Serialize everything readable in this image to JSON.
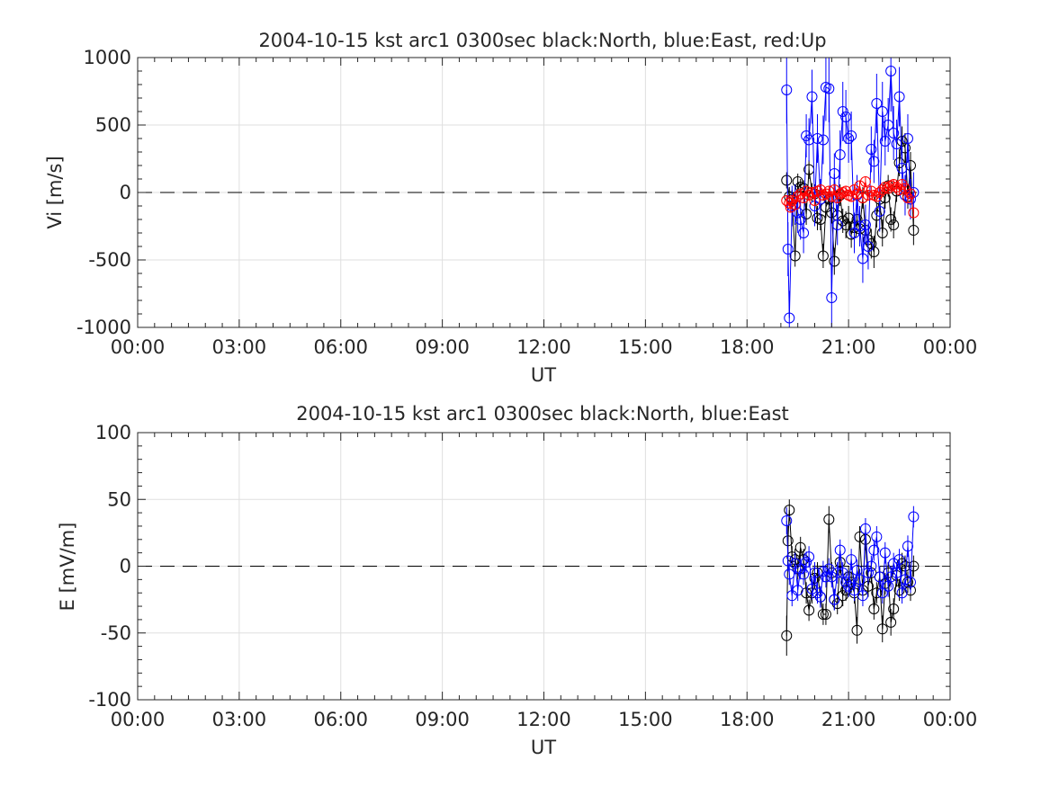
{
  "chart_data": [
    {
      "type": "scatter",
      "title": "2004-10-15 kst arc1 0300sec black:North, blue:East, red:Up",
      "xlabel": "UT",
      "ylabel": "Vi [m/s]",
      "xlim": [
        0,
        24
      ],
      "ylim": [
        -1000,
        1000
      ],
      "xtick_values": [
        0,
        3,
        6,
        9,
        12,
        15,
        18,
        21,
        24
      ],
      "xtick_labels": [
        "00:00",
        "03:00",
        "06:00",
        "09:00",
        "12:00",
        "15:00",
        "18:00",
        "21:00",
        "00:00"
      ],
      "ytick_values": [
        -1000,
        -500,
        0,
        500,
        1000
      ],
      "ytick_labels": [
        "-1000",
        "-500",
        "0",
        "500",
        "1000"
      ],
      "grid": true,
      "zero_line": "dashed",
      "marker": "open-circle",
      "error_bars": true,
      "x_units": "hours UT",
      "colors": {
        "North": "#000000",
        "East": "#0000ff",
        "Up": "#ff0000"
      },
      "series": [
        {
          "name": "North",
          "color": "#000000",
          "x": [
            19.17,
            19.25,
            19.33,
            19.42,
            19.5,
            19.58,
            19.67,
            19.75,
            19.83,
            19.92,
            20.0,
            20.08,
            20.17,
            20.25,
            20.33,
            20.42,
            20.5,
            20.58,
            20.67,
            20.75,
            20.83,
            20.92,
            21.0,
            21.08,
            21.17,
            21.25,
            21.33,
            21.42,
            21.5,
            21.58,
            21.67,
            21.75,
            21.83,
            21.92,
            22.0,
            22.08,
            22.17,
            22.25,
            22.33,
            22.42,
            22.5,
            22.58,
            22.67,
            22.75,
            22.83,
            22.92
          ],
          "y": [
            90,
            -30,
            -50,
            -470,
            80,
            40,
            30,
            -160,
            170,
            0,
            -10,
            -190,
            -200,
            -470,
            -110,
            -50,
            -150,
            -510,
            -170,
            -20,
            -210,
            -240,
            -190,
            -310,
            -260,
            -200,
            -270,
            -40,
            -280,
            -350,
            -380,
            -440,
            -170,
            -50,
            -300,
            -40,
            50,
            -200,
            -240,
            10,
            220,
            380,
            330,
            -30,
            200,
            -280
          ],
          "err": [
            60,
            70,
            70,
            80,
            60,
            60,
            60,
            80,
            70,
            70,
            70,
            90,
            80,
            90,
            80,
            70,
            80,
            100,
            80,
            80,
            90,
            100,
            90,
            100,
            90,
            90,
            100,
            80,
            110,
            110,
            110,
            120,
            90,
            80,
            100,
            80,
            80,
            90,
            100,
            80,
            100,
            110,
            110,
            90,
            100,
            110
          ],
          "connected": true
        },
        {
          "name": "East",
          "color": "#0000ff",
          "x": [
            19.17,
            19.21,
            19.25,
            19.33,
            19.42,
            19.5,
            19.58,
            19.67,
            19.75,
            19.83,
            19.92,
            20.0,
            20.08,
            20.17,
            20.25,
            20.33,
            20.42,
            20.5,
            20.58,
            20.67,
            20.75,
            20.83,
            20.92,
            21.0,
            21.08,
            21.17,
            21.25,
            21.33,
            21.42,
            21.5,
            21.58,
            21.67,
            21.75,
            21.83,
            21.92,
            22.0,
            22.08,
            22.17,
            22.25,
            22.33,
            22.42,
            22.5,
            22.58,
            22.67,
            22.75,
            22.83,
            22.92
          ],
          "y": [
            760,
            -420,
            -930,
            -100,
            -90,
            -150,
            -200,
            -300,
            420,
            390,
            710,
            -100,
            400,
            -50,
            390,
            780,
            770,
            -780,
            140,
            -240,
            280,
            600,
            560,
            400,
            420,
            -300,
            -20,
            -250,
            -490,
            -240,
            -400,
            320,
            230,
            660,
            -140,
            600,
            380,
            500,
            900,
            440,
            360,
            710,
            180,
            -20,
            400,
            -50,
            0
          ],
          "err": [
            250,
            200,
            200,
            150,
            150,
            150,
            150,
            150,
            160,
            160,
            200,
            150,
            180,
            150,
            180,
            250,
            250,
            250,
            150,
            150,
            180,
            220,
            200,
            180,
            180,
            150,
            150,
            150,
            180,
            150,
            170,
            170,
            160,
            220,
            150,
            220,
            180,
            200,
            300,
            200,
            180,
            220,
            160,
            150,
            180,
            150,
            150
          ],
          "connected": true
        },
        {
          "name": "Up",
          "color": "#ff0000",
          "x": [
            19.17,
            19.25,
            19.29,
            19.33,
            19.42,
            19.5,
            19.58,
            19.67,
            19.75,
            19.83,
            19.92,
            20.0,
            20.08,
            20.17,
            20.25,
            20.33,
            20.42,
            20.5,
            20.58,
            20.67,
            20.75,
            20.83,
            20.92,
            21.0,
            21.08,
            21.17,
            21.25,
            21.33,
            21.42,
            21.5,
            21.58,
            21.67,
            21.75,
            21.83,
            21.92,
            22.0,
            22.08,
            22.17,
            22.25,
            22.33,
            22.42,
            22.5,
            22.58,
            22.67,
            22.75,
            22.83,
            22.92
          ],
          "y": [
            -60,
            -80,
            -110,
            -60,
            -90,
            -30,
            -10,
            -40,
            10,
            -20,
            0,
            -60,
            10,
            20,
            -20,
            -10,
            10,
            -30,
            20,
            -40,
            -10,
            0,
            10,
            -20,
            -30,
            20,
            -10,
            50,
            -40,
            80,
            -20,
            10,
            -20,
            -30,
            0,
            20,
            40,
            30,
            50,
            60,
            40,
            20,
            60,
            30,
            -40,
            -10,
            -150
          ],
          "err": [
            40,
            40,
            40,
            40,
            40,
            40,
            40,
            40,
            40,
            40,
            40,
            40,
            40,
            40,
            40,
            40,
            40,
            40,
            40,
            40,
            40,
            40,
            40,
            40,
            40,
            40,
            40,
            40,
            40,
            40,
            40,
            40,
            40,
            40,
            40,
            40,
            40,
            40,
            40,
            40,
            40,
            40,
            40,
            40,
            40,
            40,
            40
          ],
          "connected": true
        }
      ]
    },
    {
      "type": "scatter",
      "title": "2004-10-15 kst arc1 0300sec black:North, blue:East",
      "xlabel": "UT",
      "ylabel": "E [mV/m]",
      "xlim": [
        0,
        24
      ],
      "ylim": [
        -100,
        100
      ],
      "xtick_values": [
        0,
        3,
        6,
        9,
        12,
        15,
        18,
        21,
        24
      ],
      "xtick_labels": [
        "00:00",
        "03:00",
        "06:00",
        "09:00",
        "12:00",
        "15:00",
        "18:00",
        "21:00",
        "00:00"
      ],
      "ytick_values": [
        -100,
        -50,
        0,
        50,
        100
      ],
      "ytick_labels": [
        "-100",
        "-50",
        "0",
        "50",
        "100"
      ],
      "grid": true,
      "zero_line": "dashed",
      "marker": "open-circle",
      "error_bars": true,
      "x_units": "hours UT",
      "colors": {
        "North": "#000000",
        "East": "#0000ff"
      },
      "series": [
        {
          "name": "North",
          "color": "#000000",
          "x": [
            19.17,
            19.21,
            19.25,
            19.33,
            19.42,
            19.5,
            19.58,
            19.67,
            19.75,
            19.83,
            19.92,
            20.0,
            20.08,
            20.17,
            20.25,
            20.33,
            20.42,
            20.5,
            20.58,
            20.67,
            20.75,
            20.83,
            20.92,
            21.0,
            21.08,
            21.17,
            21.25,
            21.33,
            21.42,
            21.5,
            21.58,
            21.67,
            21.75,
            21.83,
            21.92,
            22.0,
            22.08,
            22.17,
            22.25,
            22.33,
            22.42,
            22.5,
            22.58,
            22.67,
            22.75,
            22.83,
            22.92
          ],
          "y": [
            -52,
            19,
            42,
            7,
            5,
            -2,
            14,
            5,
            -20,
            -33,
            -20,
            -9,
            -5,
            -23,
            -36,
            -36,
            35,
            -5,
            -25,
            -28,
            3,
            -22,
            -18,
            -8,
            -12,
            -20,
            -48,
            22,
            -18,
            20,
            -15,
            -5,
            -32,
            -20,
            -8,
            -47,
            -13,
            -5,
            -42,
            -32,
            -7,
            -18,
            2,
            0,
            -12,
            -18,
            0
          ],
          "err": [
            15,
            12,
            8,
            8,
            8,
            8,
            8,
            8,
            8,
            8,
            8,
            8,
            8,
            8,
            8,
            8,
            10,
            8,
            8,
            8,
            8,
            8,
            8,
            8,
            8,
            8,
            10,
            8,
            8,
            8,
            8,
            8,
            8,
            8,
            8,
            10,
            8,
            8,
            10,
            8,
            8,
            8,
            8,
            8,
            8,
            8,
            8
          ],
          "connected": true
        },
        {
          "name": "East",
          "color": "#0000ff",
          "x": [
            19.17,
            19.21,
            19.25,
            19.33,
            19.42,
            19.5,
            19.58,
            19.67,
            19.75,
            19.83,
            19.92,
            20.0,
            20.08,
            20.17,
            20.25,
            20.33,
            20.42,
            20.5,
            20.58,
            20.67,
            20.75,
            20.83,
            20.92,
            21.0,
            21.08,
            21.17,
            21.25,
            21.33,
            21.42,
            21.5,
            21.58,
            21.67,
            21.75,
            21.83,
            21.92,
            22.0,
            22.08,
            22.17,
            22.25,
            22.33,
            22.42,
            22.5,
            22.58,
            22.67,
            22.75,
            22.83,
            22.92
          ],
          "y": [
            34,
            4,
            -6,
            -22,
            2,
            -18,
            -2,
            -6,
            3,
            7,
            -17,
            -5,
            -20,
            -23,
            -4,
            -8,
            -2,
            -8,
            -25,
            -5,
            12,
            -5,
            -12,
            -15,
            5,
            -18,
            -3,
            -10,
            -22,
            28,
            -5,
            0,
            12,
            22,
            -8,
            -20,
            10,
            -15,
            -8,
            2,
            -5,
            5,
            -20,
            -10,
            15,
            -12,
            37
          ],
          "err": [
            10,
            8,
            8,
            8,
            8,
            8,
            8,
            8,
            8,
            8,
            8,
            8,
            8,
            8,
            8,
            8,
            8,
            8,
            8,
            8,
            8,
            8,
            8,
            8,
            8,
            8,
            8,
            8,
            8,
            8,
            8,
            8,
            8,
            8,
            8,
            8,
            8,
            8,
            8,
            8,
            8,
            8,
            8,
            8,
            8,
            8,
            8
          ],
          "connected": true
        }
      ]
    }
  ]
}
